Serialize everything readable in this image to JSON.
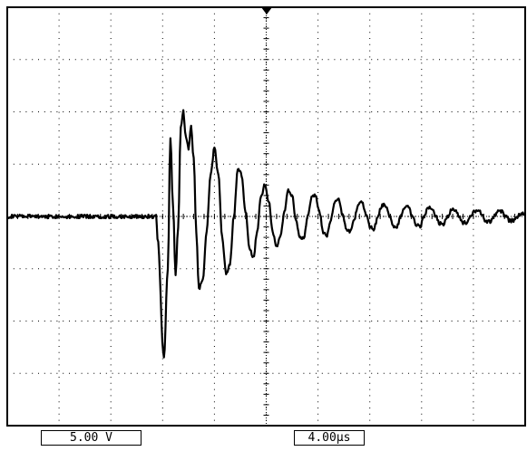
{
  "readouts": {
    "channel_scale": "5.00 V",
    "time_scale": "4.00µs"
  },
  "colors": {
    "background": "#ffffff",
    "trace": "#000000",
    "graticule": "#000000"
  },
  "icons": {
    "trigger_marker": "trigger-position-triangle"
  },
  "chart_data": {
    "type": "line",
    "title": "",
    "xlabel": "",
    "ylabel": "",
    "grid": true,
    "divisions": {
      "x": 10,
      "y": 8
    },
    "x_units": "µs",
    "y_units": "V",
    "xlim": [
      -20,
      20
    ],
    "ylim": [
      -20,
      20
    ],
    "trigger_time_us": 0,
    "series": [
      {
        "x": [
          -20,
          -8.5,
          -8.4,
          -7.9,
          -7.6,
          -7.4,
          -7.2,
          -7.0,
          -6.8,
          -6.6,
          -6.4,
          -6.2,
          -6.0,
          -5.8,
          -5.6,
          -5.4,
          -5.2,
          -4.9,
          -4.6,
          -4.3,
          -4.0,
          -3.7,
          -3.4,
          -3.1,
          -2.8,
          -2.5,
          -2.2,
          -1.9,
          -1.6,
          -1.3,
          -1.0,
          -0.7,
          -0.4,
          -0.1,
          0.2,
          0.5,
          0.8,
          1.1,
          1.4,
          1.7,
          2.0,
          2.3,
          2.6,
          2.9,
          3.2,
          3.5,
          3.8,
          4.1,
          4.4,
          4.7,
          5.0,
          5.3,
          5.6,
          5.9,
          6.2,
          6.5,
          6.8,
          7.1,
          7.4,
          7.7,
          8.0,
          8.3,
          8.6,
          8.9,
          9.2,
          9.5,
          9.8,
          10.1,
          10.4,
          10.7,
          11.0,
          11.3,
          11.6,
          11.9,
          12.2,
          12.5,
          12.8,
          13.1,
          13.4,
          13.7,
          14.0,
          14.3,
          14.6,
          14.9,
          15.2,
          15.5,
          15.8,
          16.1,
          16.4,
          16.7,
          17.0,
          17.3,
          17.6,
          17.9,
          18.2,
          18.5,
          18.8,
          19.1,
          19.4,
          19.7,
          20.0
        ],
        "y": [
          0,
          0,
          -2.0,
          -13.5,
          -5.0,
          7.5,
          1.0,
          -5.5,
          -1.0,
          8.5,
          10.0,
          7.5,
          6.5,
          8.5,
          5.5,
          -1.5,
          -7.0,
          -6.0,
          -1.5,
          4.0,
          6.5,
          4.0,
          -2.0,
          -5.5,
          -4.5,
          0.0,
          4.5,
          4.0,
          0.5,
          -3.0,
          -4.0,
          -1.5,
          2.0,
          3.0,
          1.5,
          -1.5,
          -3.0,
          -2.0,
          0.5,
          2.5,
          2.0,
          -0.5,
          -2.0,
          -2.0,
          0.0,
          1.8,
          2.0,
          0.5,
          -1.5,
          -1.8,
          -0.3,
          1.5,
          1.6,
          0.2,
          -1.2,
          -1.5,
          -0.3,
          1.2,
          1.4,
          0.2,
          -1.0,
          -1.2,
          -0.2,
          1.0,
          1.1,
          0.1,
          -0.9,
          -1.0,
          0.0,
          0.9,
          0.9,
          0.0,
          -0.8,
          -0.9,
          0.0,
          0.8,
          0.8,
          0.0,
          -0.7,
          -0.7,
          0.0,
          0.6,
          0.7,
          0.0,
          -0.6,
          -0.6,
          0.0,
          0.5,
          0.6,
          0.0,
          -0.5,
          -0.5,
          0.0,
          0.5,
          0.5,
          0.0,
          -0.4,
          -0.4,
          0.0,
          0.3,
          0.1
        ]
      }
    ]
  }
}
